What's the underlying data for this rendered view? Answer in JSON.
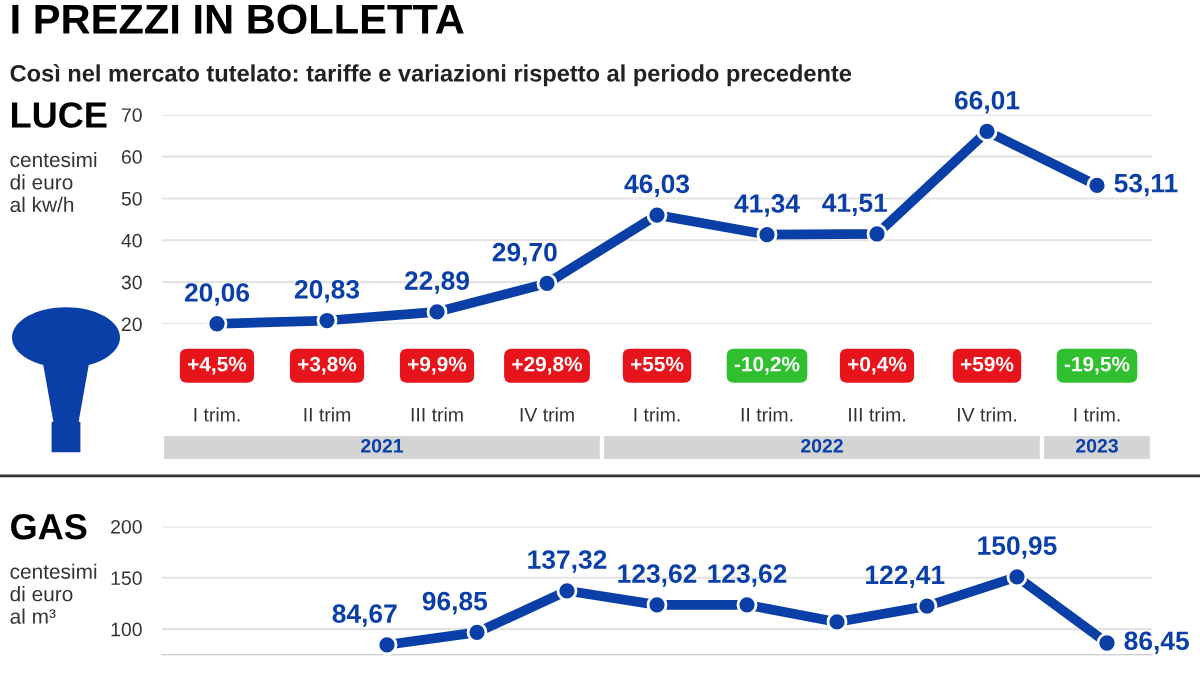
{
  "chart_data": [
    {
      "type": "line",
      "title": "LUCE",
      "ylabel": "centesimi\ndi euro\nal kw/h",
      "categories": [
        "I trim.",
        "II trim",
        "III trim",
        "IV trim",
        "I trim.",
        "II trim.",
        "III trim.",
        "IV trim.",
        "I trim."
      ],
      "series": [
        {
          "color": "#0a3fa8",
          "values": [
            20.06,
            20.83,
            22.89,
            29.7,
            46.03,
            41.34,
            41.51,
            66.01,
            53.11
          ],
          "value_labels": [
            "20,06",
            "20,83",
            "22,89",
            "29,70",
            "46,03",
            "41,34",
            "41,51",
            "66,01",
            "53,11"
          ]
        }
      ],
      "ylim": [
        20,
        70
      ],
      "yticks": [
        20,
        30,
        40,
        50,
        60,
        70
      ],
      "grid": "y",
      "marker": "circle",
      "line_style": "solid",
      "annotations": [
        "+4,5%",
        "+3,8%",
        "+9,9%",
        "+29,8%",
        "+55%",
        "-10,2%",
        "+0,4%",
        "+59%",
        "-19,5%",
        "2021",
        "2022",
        "2023",
        "I PREZZI IN BOLLETTA",
        "Così nel mercato tutelato: tariffe e variazioni rispetto al periodo precedente"
      ]
    },
    {
      "type": "line",
      "title": "GAS",
      "ylabel": "centesimi\ndi euro\nal m³",
      "categories": [
        null,
        null,
        null,
        null,
        null,
        null,
        null,
        null,
        null,
        null,
        null
      ],
      "series": [
        {
          "color": "#0a3fa8",
          "values": [
            null,
            null,
            84.67,
            96.85,
            137.32,
            123.62,
            123.62,
            107,
            122.41,
            150.95,
            86.45
          ],
          "value_labels": [
            null,
            null,
            "84,67",
            "96,85",
            "137,32",
            "123,62",
            "123,62",
            null,
            "122,41",
            "150,95",
            "86,45"
          ]
        }
      ],
      "ylim": [
        75,
        200
      ],
      "yticks": [
        100,
        150,
        200
      ],
      "grid": "y",
      "marker": "circle",
      "line_style": "solid"
    }
  ]
}
